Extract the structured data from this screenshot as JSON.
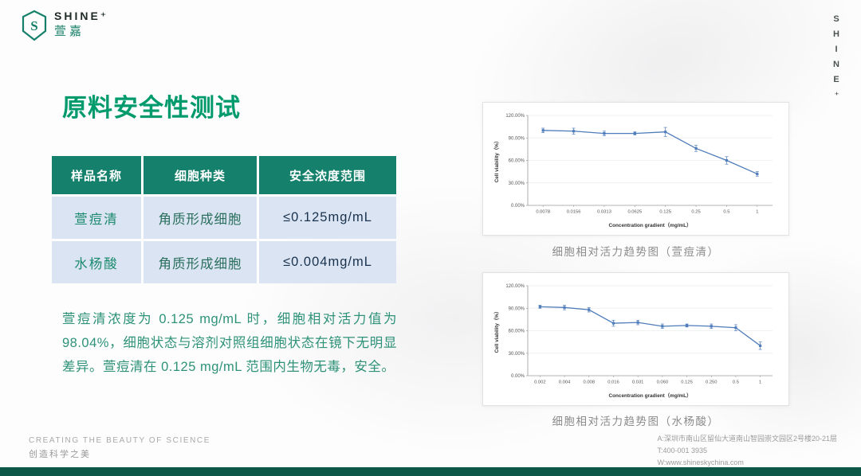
{
  "brand": {
    "logo_name": "SHINE⁺",
    "logo_sub": "萱嘉",
    "vertical_text": "SHINE⁺"
  },
  "page": {
    "title": "原料安全性测试"
  },
  "table": {
    "headers": [
      "样品名称",
      "细胞种类",
      "安全浓度范围"
    ],
    "rows": [
      [
        "萱痘清",
        "角质形成细胞",
        "≤0.125mg/mL"
      ],
      [
        "水杨酸",
        "角质形成细胞",
        "≤0.004mg/mL"
      ]
    ]
  },
  "paragraph": "萱痘清浓度为 0.125 mg/mL 时，细胞相对活力值为 98.04%，细胞状态与溶剂对照组细胞状态在镜下无明显差异。萱痘清在 0.125 mg/mL 范围内生物无毒，安全。",
  "chart_data": [
    {
      "type": "line",
      "caption": "细胞相对活力趋势图（萱痘清）",
      "x": [
        "0.0078",
        "0.0156",
        "0.0313",
        "0.0625",
        "0.125",
        "0.25",
        "0.5",
        "1"
      ],
      "values": [
        100,
        99,
        96,
        96,
        98,
        76,
        60,
        42
      ],
      "errors": [
        3,
        4,
        3,
        2,
        6,
        4,
        5,
        3
      ],
      "ylabel": "Cell viability（%）",
      "xlabel": "Concentration gradient（mg/mL）",
      "ylim": [
        0,
        120
      ],
      "ytick_values": [
        0,
        30,
        60,
        90,
        120
      ],
      "ytick_labels": [
        "0.00%",
        "30.00%",
        "60.00%",
        "90.00%",
        "120.00%"
      ],
      "color": "#4f7cba",
      "grid": true,
      "legend": "none"
    },
    {
      "type": "line",
      "caption": "细胞相对活力趋势图（水杨酸）",
      "x": [
        "0.002",
        "0.004",
        "0.008",
        "0.016",
        "0.031",
        "0.060",
        "0.125",
        "0.250",
        "0.5",
        "1"
      ],
      "values": [
        92,
        91,
        88,
        70,
        71,
        66,
        67,
        66,
        64,
        40
      ],
      "errors": [
        2,
        3,
        3,
        4,
        3,
        3,
        2,
        3,
        4,
        5
      ],
      "ylabel": "Cell viability（%）",
      "xlabel": "Concentration gradient（mg/mL）",
      "ylim": [
        0,
        120
      ],
      "ytick_values": [
        0,
        30,
        60,
        90,
        120
      ],
      "ytick_labels": [
        "0.00%",
        "30.00%",
        "60.00%",
        "90.00%",
        "120.00%"
      ],
      "color": "#4f7cba",
      "grid": true,
      "legend": "none"
    }
  ],
  "footer": {
    "tagline_en": "CREATING THE BEAUTY OF SCIENCE",
    "tagline_zh": "创造科学之美",
    "address": "A:深圳市南山区留仙大道南山智园崇文园区2号楼20-21层",
    "tel": "T:400-001 3935",
    "web": "W:www.shineskychina.com"
  }
}
